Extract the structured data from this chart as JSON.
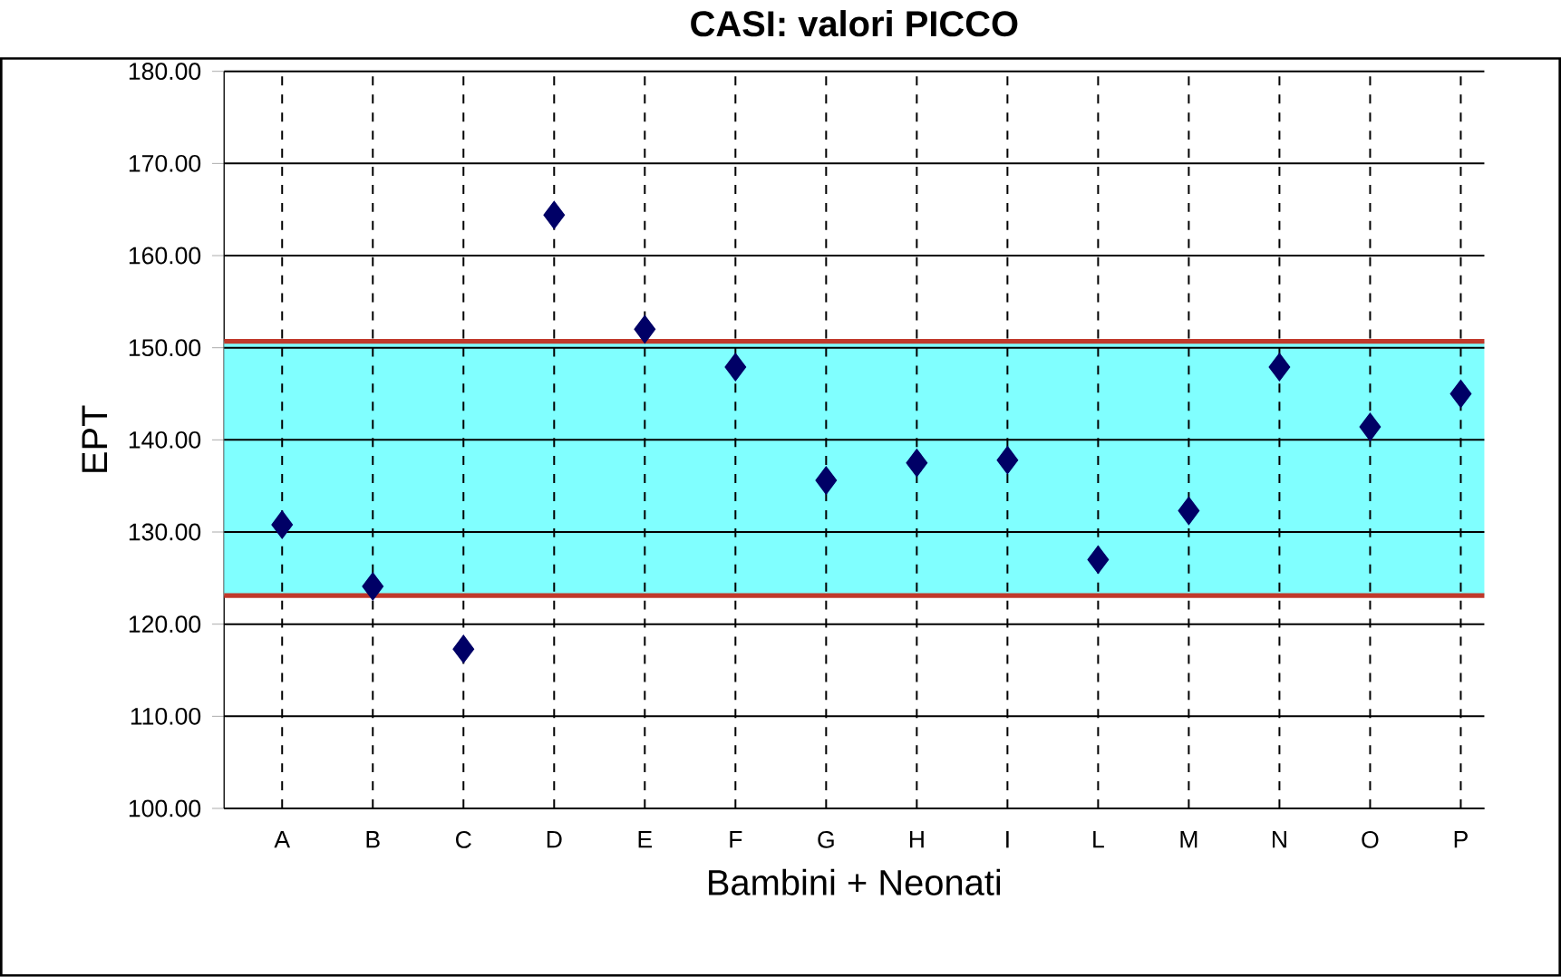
{
  "chart_data": {
    "type": "scatter",
    "title": "CASI: valori PICCO",
    "xlabel": "Bambini + Neonati",
    "ylabel": "EPT",
    "categories": [
      "A",
      "B",
      "C",
      "D",
      "E",
      "F",
      "G",
      "H",
      "I",
      "L",
      "M",
      "N",
      "O",
      "P"
    ],
    "values": [
      130.8,
      124.1,
      117.3,
      164.4,
      152.0,
      147.9,
      135.6,
      137.5,
      137.8,
      127.0,
      132.3,
      147.9,
      141.4,
      145.0
    ],
    "color": "#000066",
    "marker": "diamond",
    "ylim": [
      100,
      180
    ],
    "yticks": [
      {
        "value": 100,
        "label": "100.00"
      },
      {
        "value": 110,
        "label": "110.00"
      },
      {
        "value": 120,
        "label": "120.00"
      },
      {
        "value": 130,
        "label": "130.00"
      },
      {
        "value": 140,
        "label": "140.00"
      },
      {
        "value": 150,
        "label": "150.00"
      },
      {
        "value": 160,
        "label": "160.00"
      },
      {
        "value": 170,
        "label": "170.00"
      },
      {
        "value": 180,
        "label": "180.00"
      }
    ],
    "grid": true,
    "bands": [
      {
        "axis": "y",
        "from": 123.1,
        "to": 150.7,
        "color": "#80ffff"
      }
    ],
    "ref_lines": [
      {
        "axis": "y",
        "value": 150.7,
        "color": "#c0392b"
      },
      {
        "axis": "y",
        "value": 123.1,
        "color": "#c0392b"
      }
    ]
  }
}
